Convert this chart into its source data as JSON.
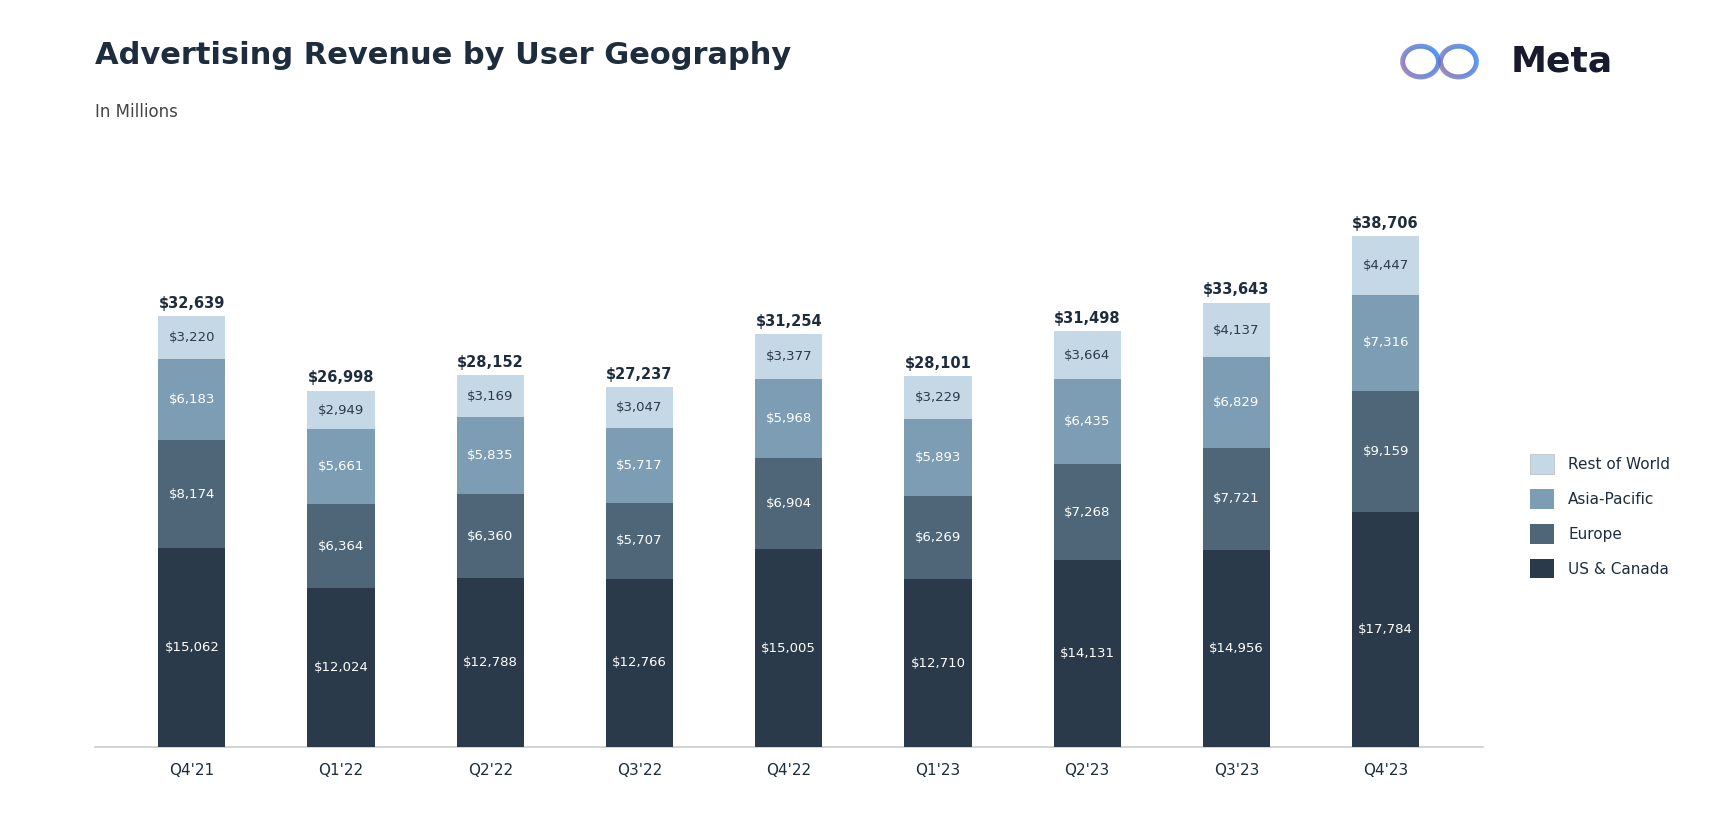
{
  "title": "Advertising Revenue by User Geography",
  "subtitle": "In Millions",
  "categories": [
    "Q4'21",
    "Q1'22",
    "Q2'22",
    "Q3'22",
    "Q4'22",
    "Q1'23",
    "Q2'23",
    "Q3'23",
    "Q4'23"
  ],
  "series": {
    "US & Canada": [
      15062,
      12024,
      12788,
      12766,
      15005,
      12710,
      14131,
      14956,
      17784
    ],
    "Europe": [
      8174,
      6364,
      6360,
      5707,
      6904,
      6269,
      7268,
      7721,
      9159
    ],
    "Asia-Pacific": [
      6183,
      5661,
      5835,
      5717,
      5968,
      5893,
      6435,
      6829,
      7316
    ],
    "Rest of World": [
      3220,
      2949,
      3169,
      3047,
      3377,
      3229,
      3664,
      4137,
      4447
    ]
  },
  "totals": [
    32639,
    26998,
    28152,
    27237,
    31254,
    28101,
    31498,
    33643,
    38706
  ],
  "colors": {
    "US & Canada": "#2b3a4a",
    "Europe": "#4e6678",
    "Asia-Pacific": "#7d9db5",
    "Rest of World": "#c5d8e6"
  },
  "legend_order": [
    "Rest of World",
    "Asia-Pacific",
    "Europe",
    "US & Canada"
  ],
  "legend_colors_order": [
    "#c5d8e6",
    "#7d9db5",
    "#4e6678",
    "#2b3a4a"
  ],
  "background_color": "#ffffff",
  "title_color": "#1e2d3d",
  "subtitle_color": "#444444",
  "label_color_white": "#ffffff",
  "label_color_dark": "#2b3a4a",
  "total_label_color": "#1e2d3d",
  "meta_text_color": "#1a1a2e",
  "meta_logo_color": "#0064e0",
  "bar_width": 0.45,
  "ylim": 46000
}
